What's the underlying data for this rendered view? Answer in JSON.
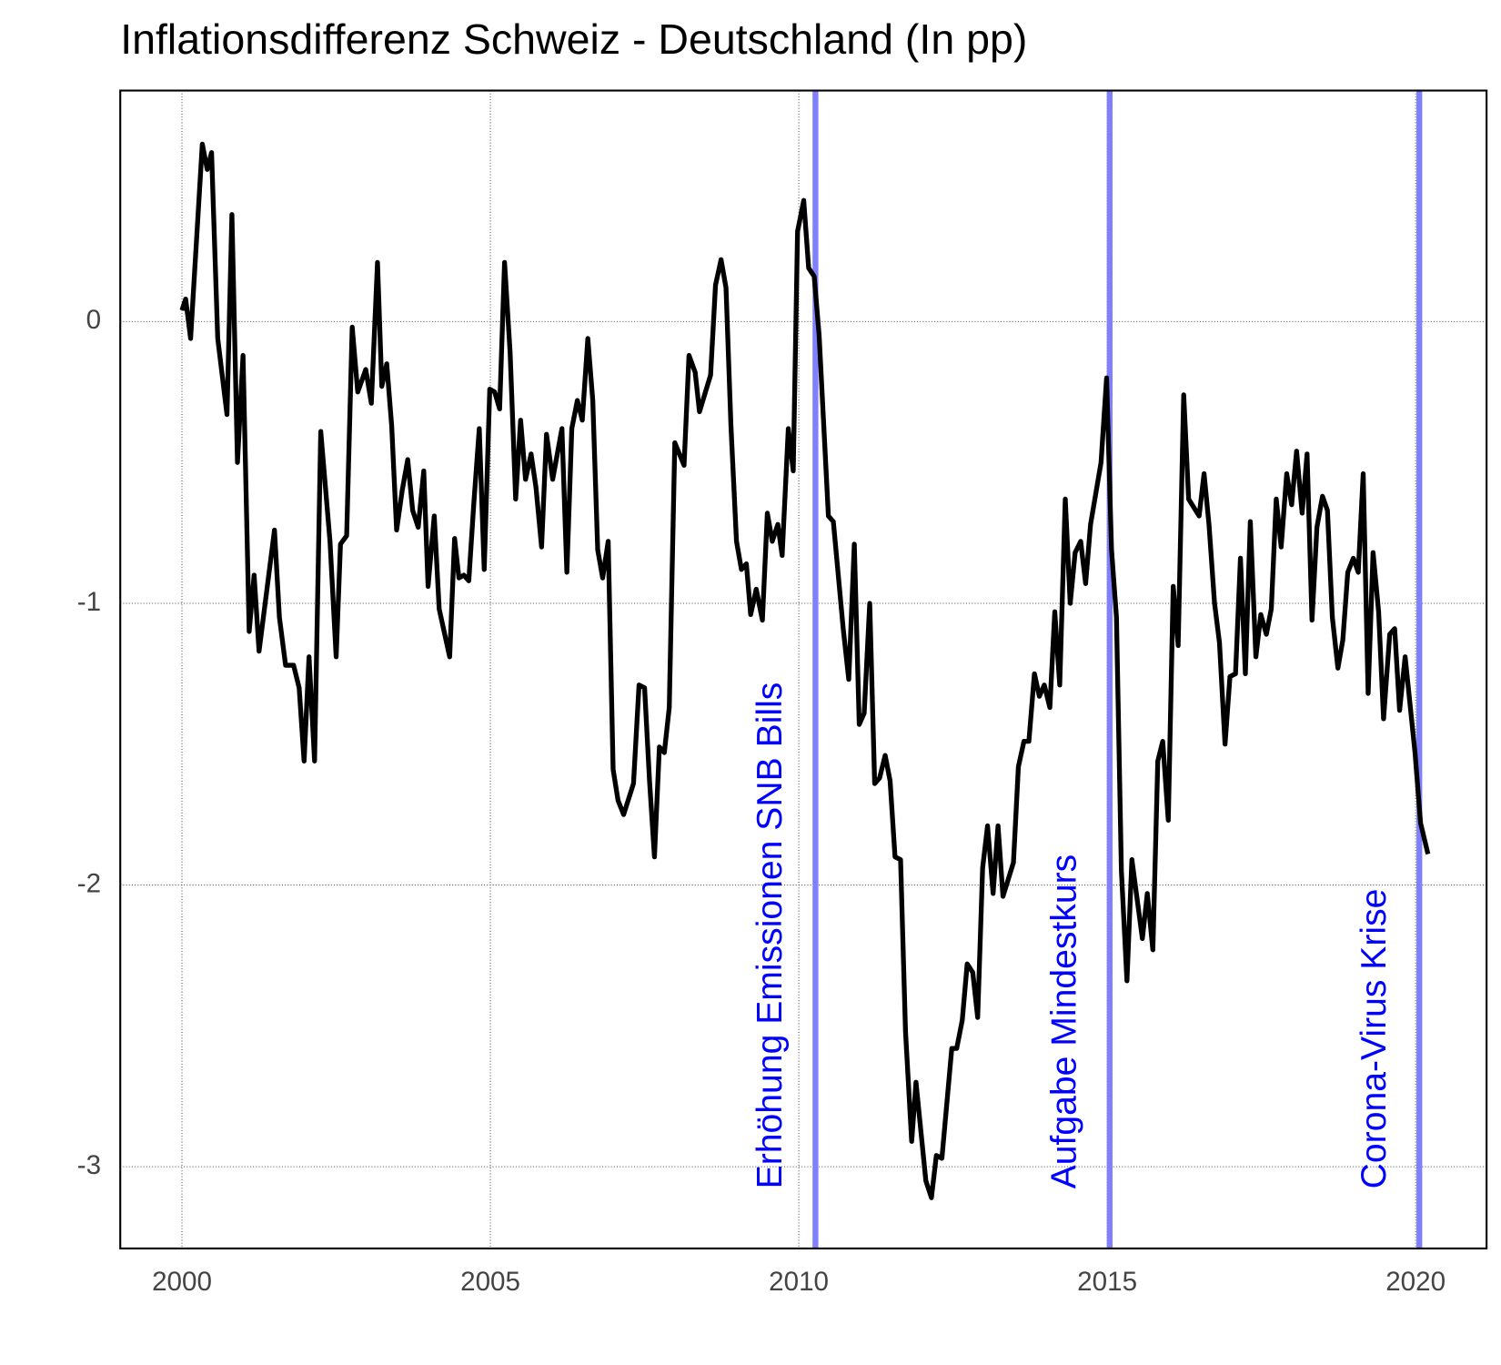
{
  "chart_data": {
    "type": "line",
    "title": "Inflationsdifferenz Schweiz - Deutschland (In pp)",
    "x": [
      2000.0,
      2000.06,
      2000.14,
      2000.33,
      2000.41,
      2000.48,
      2000.58,
      2000.73,
      2000.81,
      2000.9,
      2000.99,
      2001.09,
      2001.17,
      2001.25,
      2001.5,
      2001.58,
      2001.68,
      2001.81,
      2001.9,
      2001.98,
      2002.06,
      2002.15,
      2002.25,
      2002.4,
      2002.5,
      2002.57,
      2002.67,
      2002.76,
      2002.85,
      2002.98,
      2003.07,
      2003.17,
      2003.24,
      2003.32,
      2003.4,
      2003.48,
      2003.57,
      2003.66,
      2003.74,
      2003.83,
      2003.92,
      2003.99,
      2004.09,
      2004.17,
      2004.34,
      2004.42,
      2004.49,
      2004.57,
      2004.65,
      2004.73,
      2004.82,
      2004.9,
      2004.99,
      2005.07,
      2005.15,
      2005.23,
      2005.32,
      2005.41,
      2005.49,
      2005.57,
      2005.66,
      2005.74,
      2005.83,
      2005.91,
      2006.01,
      2006.16,
      2006.24,
      2006.32,
      2006.41,
      2006.49,
      2006.58,
      2006.66,
      2006.74,
      2006.82,
      2006.91,
      2006.99,
      2007.07,
      2007.16,
      2007.32,
      2007.41,
      2007.5,
      2007.58,
      2007.66,
      2007.74,
      2007.82,
      2007.9,
      2007.99,
      2008.14,
      2008.22,
      2008.32,
      2008.39,
      2008.57,
      2008.65,
      2008.74,
      2008.82,
      2008.9,
      2008.99,
      2009.07,
      2009.15,
      2009.22,
      2009.31,
      2009.41,
      2009.49,
      2009.57,
      2009.66,
      2009.73,
      2009.83,
      2009.91,
      2009.98,
      2010.08,
      2010.16,
      2010.25,
      2010.33,
      2010.48,
      2010.56,
      2010.72,
      2010.81,
      2010.9,
      2010.98,
      2011.06,
      2011.15,
      2011.23,
      2011.31,
      2011.4,
      2011.48,
      2011.56,
      2011.65,
      2011.73,
      2011.83,
      2011.9,
      2012.06,
      2012.15,
      2012.23,
      2012.32,
      2012.48,
      2012.56,
      2012.65,
      2012.73,
      2012.82,
      2012.9,
      2012.98,
      2013.06,
      2013.15,
      2013.23,
      2013.31,
      2013.48,
      2013.56,
      2013.65,
      2013.73,
      2013.82,
      2013.9,
      2013.98,
      2014.07,
      2014.15,
      2014.23,
      2014.32,
      2014.4,
      2014.48,
      2014.57,
      2014.65,
      2014.73,
      2014.9,
      2014.99,
      2015.07,
      2015.15,
      2015.23,
      2015.32,
      2015.4,
      2015.57,
      2015.65,
      2015.74,
      2015.82,
      2015.9,
      2015.99,
      2016.07,
      2016.15,
      2016.24,
      2016.32,
      2016.49,
      2016.57,
      2016.65,
      2016.74,
      2016.82,
      2016.91,
      2016.99,
      2017.08,
      2017.16,
      2017.24,
      2017.32,
      2017.41,
      2017.49,
      2017.58,
      2017.66,
      2017.74,
      2017.82,
      2017.91,
      2017.99,
      2018.07,
      2018.16,
      2018.24,
      2018.32,
      2018.4,
      2018.49,
      2018.57,
      2018.65,
      2018.74,
      2018.82,
      2018.9,
      2018.99,
      2019.07,
      2019.15,
      2019.23,
      2019.31,
      2019.4,
      2019.48,
      2019.58,
      2019.66,
      2019.74,
      2019.83,
      2019.91,
      2019.99,
      2020.08,
      2020.2
    ],
    "series": [
      {
        "color": "#000000",
        "values": [
          0.04,
          0.08,
          -0.06,
          0.63,
          0.54,
          0.6,
          -0.06,
          -0.33,
          0.38,
          -0.5,
          -0.12,
          -1.1,
          -0.9,
          -1.17,
          -0.74,
          -1.05,
          -1.22,
          -1.22,
          -1.3,
          -1.56,
          -1.19,
          -1.56,
          -0.39,
          -0.78,
          -1.19,
          -0.79,
          -0.76,
          -0.02,
          -0.25,
          -0.17,
          -0.29,
          0.21,
          -0.23,
          -0.15,
          -0.37,
          -0.74,
          -0.6,
          -0.49,
          -0.67,
          -0.73,
          -0.53,
          -0.94,
          -0.69,
          -1.02,
          -1.19,
          -0.77,
          -0.91,
          -0.9,
          -0.92,
          -0.65,
          -0.38,
          -0.88,
          -0.24,
          -0.25,
          -0.31,
          0.21,
          -0.11,
          -0.63,
          -0.35,
          -0.56,
          -0.47,
          -0.59,
          -0.8,
          -0.4,
          -0.56,
          -0.38,
          -0.89,
          -0.38,
          -0.28,
          -0.35,
          -0.06,
          -0.28,
          -0.81,
          -0.91,
          -0.78,
          -1.59,
          -1.7,
          -1.75,
          -1.64,
          -1.29,
          -1.3,
          -1.63,
          -1.9,
          -1.51,
          -1.53,
          -1.37,
          -0.43,
          -0.51,
          -0.12,
          -0.18,
          -0.32,
          -0.19,
          0.13,
          0.22,
          0.12,
          -0.37,
          -0.78,
          -0.88,
          -0.86,
          -1.04,
          -0.95,
          -1.06,
          -0.68,
          -0.78,
          -0.72,
          -0.83,
          -0.38,
          -0.53,
          0.32,
          0.43,
          0.19,
          0.16,
          -0.05,
          -0.69,
          -0.71,
          -1.09,
          -1.27,
          -0.79,
          -1.43,
          -1.39,
          -1.0,
          -1.64,
          -1.62,
          -1.54,
          -1.63,
          -1.9,
          -1.91,
          -2.52,
          -2.91,
          -2.7,
          -3.05,
          -3.11,
          -2.96,
          -2.97,
          -2.58,
          -2.58,
          -2.48,
          -2.28,
          -2.31,
          -2.47,
          -1.94,
          -1.79,
          -2.03,
          -1.79,
          -2.04,
          -1.92,
          -1.58,
          -1.49,
          -1.49,
          -1.25,
          -1.33,
          -1.29,
          -1.37,
          -1.03,
          -1.29,
          -0.63,
          -1.0,
          -0.82,
          -0.78,
          -0.93,
          -0.72,
          -0.5,
          -0.2,
          -0.81,
          -1.05,
          -1.95,
          -2.34,
          -1.91,
          -2.19,
          -2.03,
          -2.23,
          -1.56,
          -1.49,
          -1.77,
          -0.94,
          -1.15,
          -0.26,
          -0.63,
          -0.69,
          -0.54,
          -0.72,
          -1.0,
          -1.14,
          -1.5,
          -1.26,
          -1.25,
          -0.84,
          -1.25,
          -0.71,
          -1.19,
          -1.04,
          -1.11,
          -1.02,
          -0.63,
          -0.8,
          -0.54,
          -0.65,
          -0.46,
          -0.68,
          -0.47,
          -1.06,
          -0.73,
          -0.62,
          -0.67,
          -1.05,
          -1.23,
          -1.13,
          -0.89,
          -0.84,
          -0.89,
          -0.54,
          -1.32,
          -0.82,
          -1.03,
          -1.41,
          -1.11,
          -1.09,
          -1.38,
          -1.19,
          -1.36,
          -1.53,
          -1.78,
          -1.89
        ]
      }
    ],
    "xlim": [
      1999.0,
      2021.15
    ],
    "ylim": [
      -3.29,
      0.82
    ],
    "xticks": [
      2000,
      2005,
      2010,
      2015,
      2020
    ],
    "yticks": [
      -3,
      -2,
      -1,
      0
    ],
    "grid": true,
    "annotations": [
      {
        "x": 2010.27,
        "label": "Erhöhung Emissionen SNB Bills"
      },
      {
        "x": 2015.04,
        "label": "Aufgabe Mindestkurs"
      },
      {
        "x": 2020.06,
        "label": "Corona-Virus Krise"
      }
    ],
    "annotation_line_color": "#8080ff",
    "annotation_text_color": "#0000ff"
  }
}
